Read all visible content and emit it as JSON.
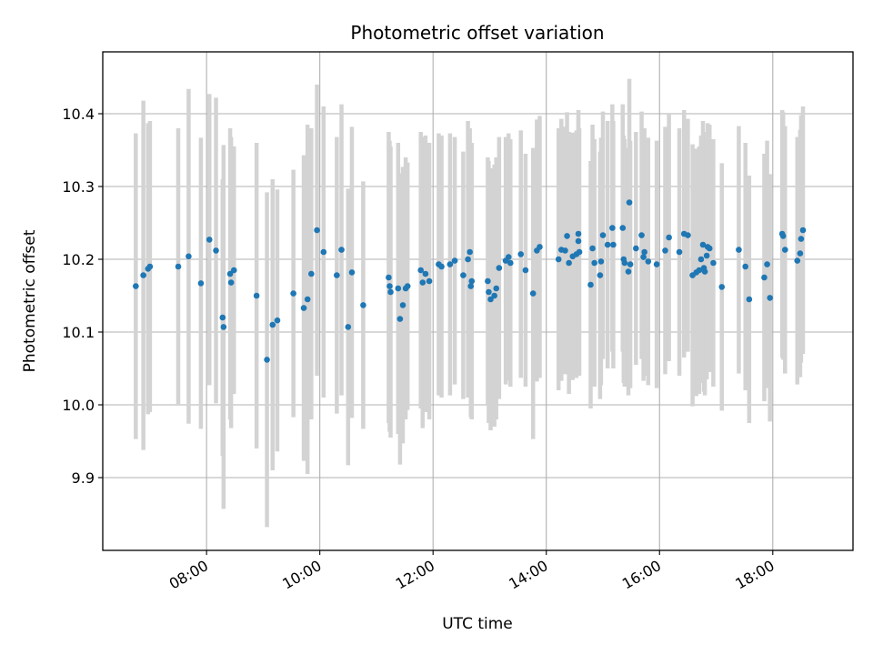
{
  "chart_data": {
    "type": "scatter",
    "title": "Photometric offset variation",
    "xlabel": "UTC time",
    "ylabel": "Photometric offset",
    "x_ticks": [
      "08:00",
      "10:00",
      "12:00",
      "14:00",
      "16:00",
      "18:00"
    ],
    "y_ticks": [
      "9.9",
      "10.0",
      "10.1",
      "10.2",
      "10.3",
      "10.4"
    ],
    "xlim": [
      "06:10",
      "19:25"
    ],
    "ylim": [
      9.8,
      10.485
    ],
    "grid": true,
    "colors": {
      "point": "#1f77b4",
      "errorbar": "#d3d3d3",
      "grid": "#b0b0b0"
    },
    "points": [
      {
        "t": "06:45",
        "y": 10.163,
        "e": 0.21
      },
      {
        "t": "06:53",
        "y": 10.178,
        "e": 0.24
      },
      {
        "t": "06:58",
        "y": 10.187,
        "e": 0.2
      },
      {
        "t": "07:00",
        "y": 10.19,
        "e": 0.2
      },
      {
        "t": "07:30",
        "y": 10.19,
        "e": 0.19
      },
      {
        "t": "07:41",
        "y": 10.204,
        "e": 0.23
      },
      {
        "t": "07:54",
        "y": 10.167,
        "e": 0.2
      },
      {
        "t": "08:03",
        "y": 10.227,
        "e": 0.2
      },
      {
        "t": "08:10",
        "y": 10.212,
        "e": 0.21
      },
      {
        "t": "08:17",
        "y": 10.12,
        "e": 0.19
      },
      {
        "t": "08:18",
        "y": 10.107,
        "e": 0.25
      },
      {
        "t": "08:25",
        "y": 10.18,
        "e": 0.2
      },
      {
        "t": "08:26",
        "y": 10.168,
        "e": 0.2
      },
      {
        "t": "08:29",
        "y": 10.185,
        "e": 0.17
      },
      {
        "t": "08:53",
        "y": 10.15,
        "e": 0.21
      },
      {
        "t": "09:04",
        "y": 10.062,
        "e": 0.23
      },
      {
        "t": "09:10",
        "y": 10.11,
        "e": 0.2
      },
      {
        "t": "09:15",
        "y": 10.116,
        "e": 0.18
      },
      {
        "t": "09:32",
        "y": 10.153,
        "e": 0.17
      },
      {
        "t": "09:43",
        "y": 10.133,
        "e": 0.21
      },
      {
        "t": "09:47",
        "y": 10.145,
        "e": 0.24
      },
      {
        "t": "09:51",
        "y": 10.18,
        "e": 0.2
      },
      {
        "t": "09:57",
        "y": 10.24,
        "e": 0.2
      },
      {
        "t": "10:04",
        "y": 10.21,
        "e": 0.2
      },
      {
        "t": "10:18",
        "y": 10.178,
        "e": 0.19
      },
      {
        "t": "10:23",
        "y": 10.213,
        "e": 0.2
      },
      {
        "t": "10:30",
        "y": 10.107,
        "e": 0.19
      },
      {
        "t": "10:34",
        "y": 10.182,
        "e": 0.2
      },
      {
        "t": "10:46",
        "y": 10.137,
        "e": 0.17
      },
      {
        "t": "11:13",
        "y": 10.175,
        "e": 0.2
      },
      {
        "t": "11:14",
        "y": 10.163,
        "e": 0.2
      },
      {
        "t": "11:15",
        "y": 10.155,
        "e": 0.2
      },
      {
        "t": "11:23",
        "y": 10.16,
        "e": 0.2
      },
      {
        "t": "11:25",
        "y": 10.118,
        "e": 0.2
      },
      {
        "t": "11:28",
        "y": 10.137,
        "e": 0.19
      },
      {
        "t": "11:31",
        "y": 10.16,
        "e": 0.18
      },
      {
        "t": "11:33",
        "y": 10.163,
        "e": 0.17
      },
      {
        "t": "11:47",
        "y": 10.185,
        "e": 0.19
      },
      {
        "t": "11:49",
        "y": 10.168,
        "e": 0.2
      },
      {
        "t": "11:52",
        "y": 10.18,
        "e": 0.19
      },
      {
        "t": "11:56",
        "y": 10.17,
        "e": 0.19
      },
      {
        "t": "12:06",
        "y": 10.193,
        "e": 0.18
      },
      {
        "t": "12:09",
        "y": 10.19,
        "e": 0.18
      },
      {
        "t": "12:18",
        "y": 10.193,
        "e": 0.18
      },
      {
        "t": "12:23",
        "y": 10.198,
        "e": 0.17
      },
      {
        "t": "12:32",
        "y": 10.178,
        "e": 0.17
      },
      {
        "t": "12:37",
        "y": 10.2,
        "e": 0.19
      },
      {
        "t": "12:39",
        "y": 10.21,
        "e": 0.17
      },
      {
        "t": "12:40",
        "y": 10.163,
        "e": 0.18
      },
      {
        "t": "12:41",
        "y": 10.17,
        "e": 0.19
      },
      {
        "t": "12:58",
        "y": 10.17,
        "e": 0.17
      },
      {
        "t": "12:59",
        "y": 10.155,
        "e": 0.18
      },
      {
        "t": "13:01",
        "y": 10.145,
        "e": 0.18
      },
      {
        "t": "13:05",
        "y": 10.15,
        "e": 0.18
      },
      {
        "t": "13:07",
        "y": 10.16,
        "e": 0.18
      },
      {
        "t": "13:10",
        "y": 10.188,
        "e": 0.18
      },
      {
        "t": "13:17",
        "y": 10.198,
        "e": 0.17
      },
      {
        "t": "13:20",
        "y": 10.203,
        "e": 0.17
      },
      {
        "t": "13:22",
        "y": 10.195,
        "e": 0.17
      },
      {
        "t": "13:33",
        "y": 10.207,
        "e": 0.17
      },
      {
        "t": "13:38",
        "y": 10.185,
        "e": 0.16
      },
      {
        "t": "13:46",
        "y": 10.153,
        "e": 0.2
      },
      {
        "t": "13:50",
        "y": 10.212,
        "e": 0.18
      },
      {
        "t": "13:53",
        "y": 10.217,
        "e": 0.18
      },
      {
        "t": "14:13",
        "y": 10.2,
        "e": 0.18
      },
      {
        "t": "14:16",
        "y": 10.213,
        "e": 0.18
      },
      {
        "t": "14:20",
        "y": 10.212,
        "e": 0.17
      },
      {
        "t": "14:22",
        "y": 10.232,
        "e": 0.17
      },
      {
        "t": "14:24",
        "y": 10.195,
        "e": 0.18
      },
      {
        "t": "14:28",
        "y": 10.204,
        "e": 0.17
      },
      {
        "t": "14:32",
        "y": 10.207,
        "e": 0.17
      },
      {
        "t": "14:34",
        "y": 10.225,
        "e": 0.17
      },
      {
        "t": "14:34",
        "y": 10.235,
        "e": 0.17
      },
      {
        "t": "14:35",
        "y": 10.21,
        "e": 0.17
      },
      {
        "t": "14:47",
        "y": 10.165,
        "e": 0.17
      },
      {
        "t": "14:49",
        "y": 10.215,
        "e": 0.17
      },
      {
        "t": "14:51",
        "y": 10.195,
        "e": 0.17
      },
      {
        "t": "14:57",
        "y": 10.178,
        "e": 0.17
      },
      {
        "t": "14:58",
        "y": 10.197,
        "e": 0.17
      },
      {
        "t": "15:00",
        "y": 10.233,
        "e": 0.17
      },
      {
        "t": "15:05",
        "y": 10.22,
        "e": 0.17
      },
      {
        "t": "15:10",
        "y": 10.243,
        "e": 0.17
      },
      {
        "t": "15:11",
        "y": 10.22,
        "e": 0.17
      },
      {
        "t": "15:21",
        "y": 10.243,
        "e": 0.17
      },
      {
        "t": "15:22",
        "y": 10.2,
        "e": 0.17
      },
      {
        "t": "15:23",
        "y": 10.195,
        "e": 0.17
      },
      {
        "t": "15:27",
        "y": 10.183,
        "e": 0.17
      },
      {
        "t": "15:28",
        "y": 10.278,
        "e": 0.17
      },
      {
        "t": "15:29",
        "y": 10.193,
        "e": 0.17
      },
      {
        "t": "15:35",
        "y": 10.215,
        "e": 0.16
      },
      {
        "t": "15:41",
        "y": 10.233,
        "e": 0.17
      },
      {
        "t": "15:43",
        "y": 10.203,
        "e": 0.17
      },
      {
        "t": "15:44",
        "y": 10.21,
        "e": 0.17
      },
      {
        "t": "15:48",
        "y": 10.197,
        "e": 0.17
      },
      {
        "t": "15:57",
        "y": 10.193,
        "e": 0.17
      },
      {
        "t": "16:06",
        "y": 10.212,
        "e": 0.17
      },
      {
        "t": "16:10",
        "y": 10.23,
        "e": 0.17
      },
      {
        "t": "16:21",
        "y": 10.21,
        "e": 0.17
      },
      {
        "t": "16:26",
        "y": 10.235,
        "e": 0.17
      },
      {
        "t": "16:30",
        "y": 10.233,
        "e": 0.16
      },
      {
        "t": "16:35",
        "y": 10.178,
        "e": 0.18
      },
      {
        "t": "16:39",
        "y": 10.182,
        "e": 0.17
      },
      {
        "t": "16:42",
        "y": 10.185,
        "e": 0.17
      },
      {
        "t": "16:44",
        "y": 10.2,
        "e": 0.17
      },
      {
        "t": "16:46",
        "y": 10.22,
        "e": 0.17
      },
      {
        "t": "16:47",
        "y": 10.188,
        "e": 0.17
      },
      {
        "t": "16:48",
        "y": 10.183,
        "e": 0.17
      },
      {
        "t": "16:50",
        "y": 10.205,
        "e": 0.17
      },
      {
        "t": "16:51",
        "y": 10.217,
        "e": 0.17
      },
      {
        "t": "16:53",
        "y": 10.215,
        "e": 0.17
      },
      {
        "t": "16:57",
        "y": 10.195,
        "e": 0.17
      },
      {
        "t": "17:06",
        "y": 10.162,
        "e": 0.17
      },
      {
        "t": "17:24",
        "y": 10.213,
        "e": 0.17
      },
      {
        "t": "17:31",
        "y": 10.19,
        "e": 0.17
      },
      {
        "t": "17:35",
        "y": 10.145,
        "e": 0.17
      },
      {
        "t": "17:51",
        "y": 10.175,
        "e": 0.17
      },
      {
        "t": "17:54",
        "y": 10.193,
        "e": 0.17
      },
      {
        "t": "17:57",
        "y": 10.147,
        "e": 0.17
      },
      {
        "t": "18:10",
        "y": 10.235,
        "e": 0.17
      },
      {
        "t": "18:11",
        "y": 10.232,
        "e": 0.17
      },
      {
        "t": "18:13",
        "y": 10.213,
        "e": 0.17
      },
      {
        "t": "18:26",
        "y": 10.198,
        "e": 0.17
      },
      {
        "t": "18:29",
        "y": 10.208,
        "e": 0.17
      },
      {
        "t": "18:30",
        "y": 10.228,
        "e": 0.17
      },
      {
        "t": "18:32",
        "y": 10.24,
        "e": 0.17
      }
    ]
  }
}
